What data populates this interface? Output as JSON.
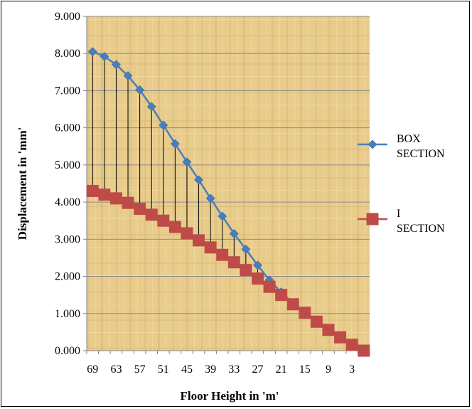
{
  "chart_data": {
    "type": "line",
    "title": "",
    "xlabel": "Floor Height in 'm'",
    "ylabel": "Displacement in 'mm'",
    "ylim": [
      0,
      9
    ],
    "y_ticks": [
      "0.000",
      "1.000",
      "2.000",
      "3.000",
      "4.000",
      "5.000",
      "6.000",
      "7.000",
      "8.000",
      "9.000"
    ],
    "x": [
      69,
      66,
      63,
      60,
      57,
      54,
      51,
      48,
      45,
      42,
      39,
      36,
      33,
      30,
      27,
      24,
      21,
      18,
      15,
      12,
      9,
      6,
      3,
      0
    ],
    "x_tick_labels": [
      "69",
      "63",
      "57",
      "51",
      "45",
      "39",
      "33",
      "27",
      "21",
      "15",
      "9",
      "3"
    ],
    "series": [
      {
        "name": "BOX SECTION",
        "color": "#4a7ebb",
        "marker": "diamond",
        "values": [
          8.05,
          7.92,
          7.7,
          7.4,
          7.02,
          6.57,
          6.07,
          5.57,
          5.08,
          4.6,
          4.1,
          3.62,
          3.15,
          2.73,
          2.3,
          1.9,
          1.58,
          1.28,
          1.02,
          0.78,
          0.58,
          0.38,
          0.18,
          0.0
        ]
      },
      {
        "name": "I SECTION",
        "color": "#be4b48",
        "marker": "square",
        "values": [
          4.3,
          4.2,
          4.1,
          3.98,
          3.82,
          3.66,
          3.5,
          3.33,
          3.16,
          2.97,
          2.78,
          2.58,
          2.38,
          2.17,
          1.94,
          1.72,
          1.5,
          1.25,
          1.02,
          0.78,
          0.56,
          0.36,
          0.16,
          0.0
        ]
      }
    ],
    "drop_lines": true,
    "grid": true,
    "legend": "right",
    "plot_background": "#e8cc8c"
  }
}
